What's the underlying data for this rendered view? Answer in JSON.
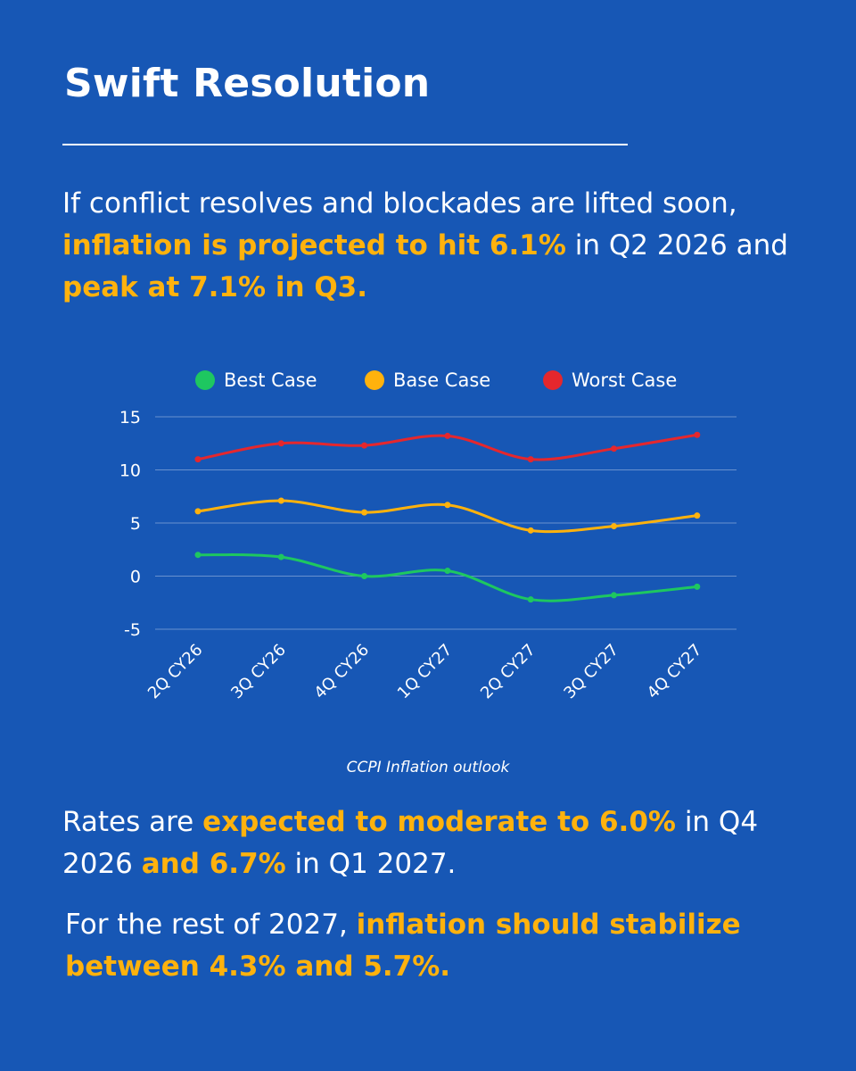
{
  "title": "Swift Resolution",
  "intro": {
    "t1": "If conflict resolves and blockades are lifted soon, ",
    "h1": "inflation is projected to hit 6.1%",
    "t2": " in Q2 2026 and ",
    "h2": "peak at 7.1% in Q3."
  },
  "moderate": {
    "t1": "Rates are ",
    "h1": "expected to moderate to 6.0%",
    "t2": " in Q4 2026 ",
    "h2": "and 6.7%",
    "t3": " in Q1 2027."
  },
  "rest": {
    "t1": "For the rest of 2027, ",
    "h1": "inflation should stabilize between 4.3% and 5.7%."
  },
  "colors": {
    "background": "#1757b5",
    "highlight": "#ffb20d",
    "best": "#1ec760",
    "base": "#ffb20d",
    "worst": "#e5272d"
  },
  "chart_data": {
    "type": "line",
    "caption": "CCPI Inflation outlook",
    "categories": [
      "2Q CY26",
      "3Q CY26",
      "4Q CY26",
      "1Q CY27",
      "2Q CY27",
      "3Q CY27",
      "4Q CY27"
    ],
    "series": [
      {
        "name": "Best Case",
        "color": "#1ec760",
        "values": [
          2.0,
          1.8,
          0.0,
          0.5,
          -2.2,
          -1.8,
          -1.0
        ]
      },
      {
        "name": "Base Case",
        "color": "#ffb20d",
        "values": [
          6.1,
          7.1,
          6.0,
          6.7,
          4.3,
          4.7,
          5.7
        ]
      },
      {
        "name": "Worst Case",
        "color": "#e5272d",
        "values": [
          11.0,
          12.5,
          12.3,
          13.2,
          11.0,
          12.0,
          13.3
        ]
      }
    ],
    "yticks": [
      15,
      10,
      5,
      0,
      -5
    ],
    "ylim": [
      -5,
      15
    ],
    "grid": true,
    "legend": "top-center"
  }
}
